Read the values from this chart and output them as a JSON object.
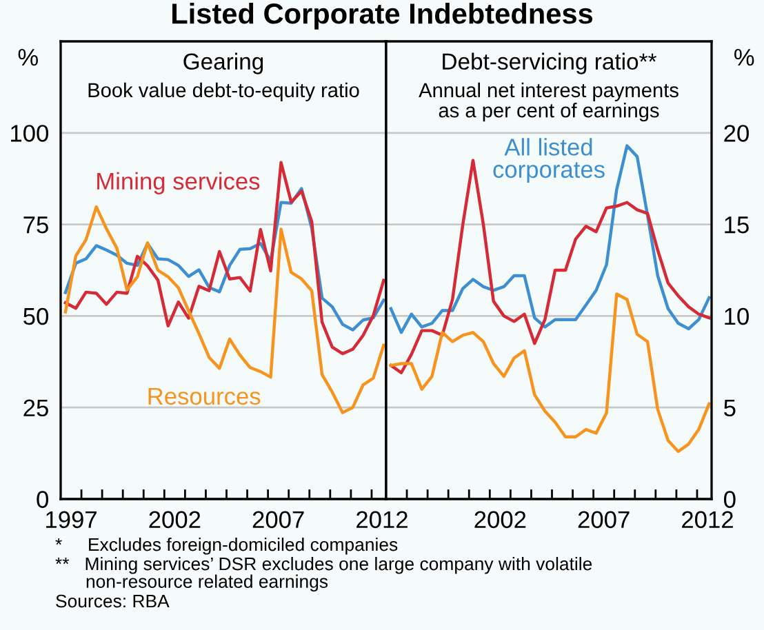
{
  "chart_data": [
    {
      "type": "line",
      "title": "Listed Corporate Indebtedness",
      "subtitle": "Gearing\nBook value debt-to-equity ratio",
      "ylabel": "%",
      "x": [
        1997.23,
        1997.73,
        1998.22,
        1998.72,
        1999.21,
        1999.71,
        2000.2,
        2000.7,
        2001.19,
        2001.69,
        2002.18,
        2002.68,
        2003.17,
        2003.67,
        2004.16,
        2004.66,
        2005.15,
        2005.65,
        2006.14,
        2006.64,
        2007.13,
        2007.63,
        2008.12,
        2008.62,
        2009.11,
        2009.61,
        2010.1,
        2010.6,
        2011.09,
        2011.59,
        2012.08,
        2012.58
      ],
      "series": [
        {
          "color": "#3d8fd1",
          "values": [
            56.4,
            64.4,
            65.6,
            69.2,
            68,
            66.6,
            64.4,
            63.8,
            69.8,
            65.6,
            65.4,
            63.8,
            60.8,
            62.6,
            57.8,
            56.6,
            63.8,
            68.2,
            68.4,
            69.8,
            65,
            81,
            80.8,
            84.8,
            74,
            54.9,
            52.5,
            47.7,
            46.2,
            48.9,
            49.5,
            54.3
          ]
        },
        {
          "name": "Mining services",
          "color": "#d62b36",
          "values": [
            53.6,
            52.1,
            56.5,
            56.2,
            53.2,
            56.5,
            56.2,
            66.3,
            63.7,
            59.8,
            47.3,
            53.8,
            49.4,
            58.1,
            56.9,
            67.6,
            60.1,
            60.5,
            56.8,
            73.6,
            62.3,
            91.9,
            81.1,
            84.1,
            75.8,
            48.3,
            41.5,
            39.7,
            40.9,
            44.7,
            50.1,
            59.7
          ]
        },
        {
          "name": "Resources",
          "color": "#f7941d",
          "values": [
            51.1,
            66.4,
            70.8,
            79.8,
            73.8,
            68.5,
            57.1,
            60.7,
            70,
            62.5,
            60.7,
            57.7,
            51.4,
            45.2,
            38.7,
            35.7,
            43.7,
            39.3,
            35.9,
            34.8,
            33.3,
            73.7,
            61.9,
            60.1,
            56.9,
            34,
            29.2,
            23.6,
            25,
            31.2,
            33,
            42
          ]
        }
      ],
      "xlim": [
        1997,
        2012.7
      ],
      "xticks": [
        {
          "value": 1997.5,
          "label": "1997"
        },
        {
          "value": 2002.5,
          "label": "2002"
        },
        {
          "value": 2007.5,
          "label": "2007"
        },
        {
          "value": 2012.5,
          "label": "2012"
        },
        {
          "value": 1998,
          "label": null
        },
        {
          "value": 1999,
          "label": null
        },
        {
          "value": 2000,
          "label": null
        },
        {
          "value": 2001,
          "label": null
        },
        {
          "value": 2002,
          "label": null
        },
        {
          "value": 2003,
          "label": null
        },
        {
          "value": 2004,
          "label": null
        },
        {
          "value": 2005,
          "label": null
        },
        {
          "value": 2006,
          "label": null
        },
        {
          "value": 2007,
          "label": null
        },
        {
          "value": 2008,
          "label": null
        },
        {
          "value": 2009,
          "label": null
        },
        {
          "value": 2010,
          "label": null
        },
        {
          "value": 2011,
          "label": null
        },
        {
          "value": 2012,
          "label": null
        }
      ],
      "ylim": [
        0,
        125
      ],
      "yticks": [
        0,
        25,
        50,
        75,
        100
      ],
      "grid": "y",
      "legend": false,
      "annotations": [
        "*     Excludes foreign-domiciled companies",
        "**   Mining services’ DSR excludes one large company with volatile\n      non-resource related earnings",
        "Sources: RBA"
      ]
    },
    {
      "type": "line",
      "subtitle": "Debt-servicing ratio**\nAnnual net interest payments\nas a per cent of earnings",
      "ylabel": "%",
      "x": [
        1997.23,
        1997.73,
        1998.22,
        1998.72,
        1999.21,
        1999.71,
        2000.2,
        2000.7,
        2001.19,
        2001.69,
        2002.18,
        2002.68,
        2003.17,
        2003.67,
        2004.16,
        2004.66,
        2005.15,
        2005.65,
        2006.14,
        2006.64,
        2007.13,
        2007.63,
        2008.12,
        2008.62,
        2009.11,
        2009.61,
        2010.1,
        2010.6,
        2011.09,
        2011.59,
        2012.08,
        2012.58
      ],
      "series": [
        {
          "name": "All listed\ncorporates",
          "color": "#3d8fd1",
          "values": [
            10.4,
            9.1,
            10.1,
            9.4,
            9.6,
            10.3,
            10.3,
            11.5,
            12,
            11.6,
            11.4,
            11.6,
            12.2,
            12.2,
            9.9,
            9.4,
            9.8,
            9.8,
            9.8,
            10.6,
            11.4,
            12.8,
            16.9,
            19.3,
            18.7,
            15.5,
            12.2,
            10.4,
            9.6,
            9.3,
            9.8,
            11
          ]
        },
        {
          "color": "#d62b36",
          "values": [
            7.3,
            6.9,
            7.9,
            9.2,
            9.2,
            8.95,
            10.9,
            15,
            18.5,
            15,
            10.8,
            10,
            9.7,
            10.1,
            8.5,
            9.8,
            12.5,
            12.5,
            14.2,
            14.9,
            14.6,
            15.9,
            16,
            16.2,
            15.8,
            15.6,
            13.6,
            11.8,
            11.1,
            10.5,
            10.1,
            9.9
          ]
        },
        {
          "color": "#f7941d",
          "values": [
            7.3,
            7.4,
            7.4,
            6,
            6.7,
            9.1,
            8.6,
            8.95,
            9.1,
            8.6,
            7.4,
            6.7,
            7.7,
            8.1,
            5.7,
            4.8,
            4.2,
            3.4,
            3.4,
            3.8,
            3.6,
            4.7,
            11.2,
            10.9,
            9,
            8.6,
            4.9,
            3.2,
            2.6,
            3,
            3.8,
            5.2
          ]
        }
      ],
      "xlim": [
        1997,
        2012.7
      ],
      "xticks": [
        {
          "value": 2002.5,
          "label": "2002"
        },
        {
          "value": 2007.5,
          "label": "2007"
        },
        {
          "value": 2012.5,
          "label": "2012"
        },
        {
          "value": 1998,
          "label": null
        },
        {
          "value": 1999,
          "label": null
        },
        {
          "value": 2000,
          "label": null
        },
        {
          "value": 2001,
          "label": null
        },
        {
          "value": 2002,
          "label": null
        },
        {
          "value": 2003,
          "label": null
        },
        {
          "value": 2004,
          "label": null
        },
        {
          "value": 2005,
          "label": null
        },
        {
          "value": 2006,
          "label": null
        },
        {
          "value": 2007,
          "label": null
        },
        {
          "value": 2008,
          "label": null
        },
        {
          "value": 2009,
          "label": null
        },
        {
          "value": 2010,
          "label": null
        },
        {
          "value": 2011,
          "label": null
        },
        {
          "value": 2012,
          "label": null
        }
      ],
      "ylim": [
        0,
        25
      ],
      "yticks": [
        0,
        5,
        10,
        15,
        20
      ],
      "grid": "y",
      "legend": false
    }
  ]
}
